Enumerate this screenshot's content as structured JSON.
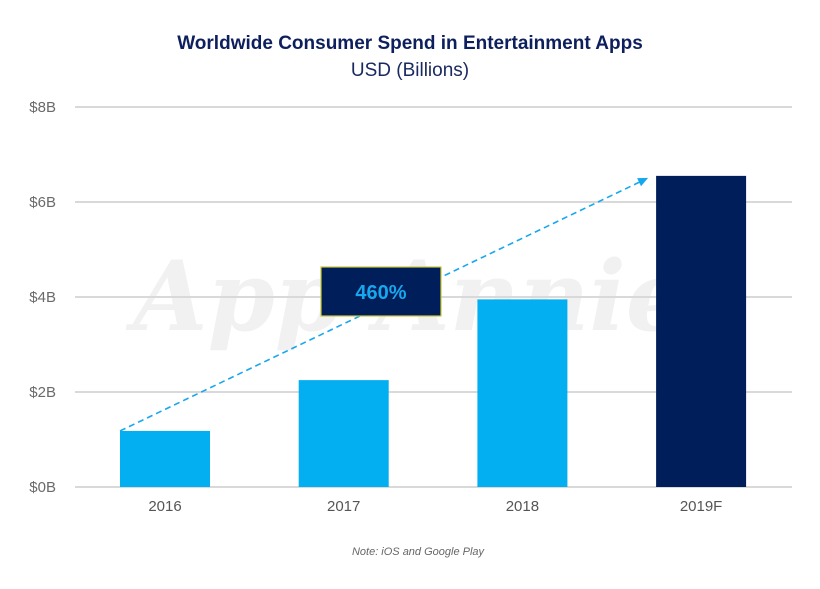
{
  "chart_data": {
    "type": "bar",
    "title": "Worldwide Consumer Spend in Entertainment Apps",
    "subtitle": "USD (Billions)",
    "xlabel": "",
    "ylabel": "",
    "categories": [
      "2016",
      "2017",
      "2018",
      "2019F"
    ],
    "values": [
      1.18,
      2.25,
      3.95,
      6.55
    ],
    "bar_colors": [
      "#03aff0",
      "#03aff0",
      "#03aff0",
      "#001e5a"
    ],
    "ylim": [
      0,
      8
    ],
    "yticks": [
      0,
      2,
      4,
      6,
      8
    ],
    "ytick_labels": [
      "$0B",
      "$2B",
      "$4B",
      "$6B",
      "$8B"
    ],
    "grid": true,
    "annotation": {
      "text": "460%",
      "type": "dashed-arrow",
      "from_category": "2016",
      "to_category": "2019F",
      "box_color": "#001e5a",
      "text_color": "#17a7ee",
      "arrow_color": "#17a7ee"
    },
    "note": "Note: iOS and Google Play",
    "watermark": "App Annie"
  }
}
